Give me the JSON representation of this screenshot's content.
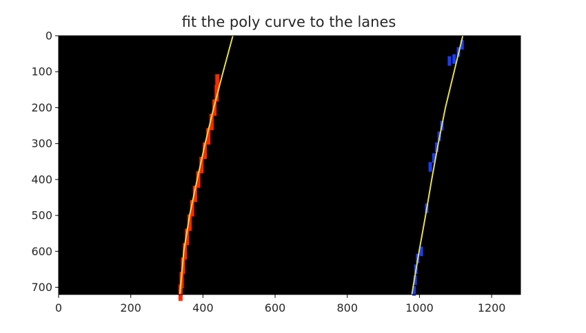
{
  "chart_data": {
    "type": "image_with_line_overlay",
    "title": "fit the poly curve to the lanes",
    "xlabel": "",
    "ylabel": "",
    "xlim": [
      0,
      1280
    ],
    "ylim": [
      720,
      0
    ],
    "xticks": [
      0,
      200,
      400,
      600,
      800,
      1000,
      1200
    ],
    "yticks": [
      0,
      100,
      200,
      300,
      400,
      500,
      600,
      700
    ],
    "grid": false,
    "background_color": "#000000",
    "fit_color": "#e8e04a",
    "series": [
      {
        "role": "left-lane-pixels",
        "color": "#ff2a00",
        "points": [
          [
            440,
            130
          ],
          [
            438,
            160
          ],
          [
            432,
            200
          ],
          [
            424,
            240
          ],
          [
            415,
            280
          ],
          [
            405,
            320
          ],
          [
            396,
            360
          ],
          [
            387,
            400
          ],
          [
            378,
            440
          ],
          [
            370,
            480
          ],
          [
            363,
            520
          ],
          [
            356,
            560
          ],
          [
            350,
            600
          ],
          [
            345,
            640
          ],
          [
            341,
            680
          ],
          [
            338,
            715
          ]
        ]
      },
      {
        "role": "right-lane-pixels",
        "color": "#1a3cff",
        "points": [
          [
            1118,
            25
          ],
          [
            1108,
            45
          ],
          [
            1096,
            65
          ],
          [
            1083,
            70
          ],
          [
            1062,
            250
          ],
          [
            1055,
            280
          ],
          [
            1048,
            310
          ],
          [
            1040,
            340
          ],
          [
            1030,
            365
          ],
          [
            1020,
            480
          ],
          [
            1005,
            600
          ],
          [
            995,
            620
          ],
          [
            990,
            650
          ],
          [
            988,
            680
          ],
          [
            985,
            710
          ]
        ]
      },
      {
        "role": "left-lane-fit",
        "points": [
          [
            483,
            0
          ],
          [
            456,
            100
          ],
          [
            430,
            200
          ],
          [
            406,
            300
          ],
          [
            384,
            400
          ],
          [
            363,
            500
          ],
          [
            347,
            600
          ],
          [
            336,
            720
          ]
        ]
      },
      {
        "role": "right-lane-fit",
        "points": [
          [
            1120,
            0
          ],
          [
            1096,
            100
          ],
          [
            1072,
            200
          ],
          [
            1052,
            300
          ],
          [
            1034,
            400
          ],
          [
            1017,
            500
          ],
          [
            999,
            600
          ],
          [
            979,
            720
          ]
        ]
      }
    ]
  }
}
